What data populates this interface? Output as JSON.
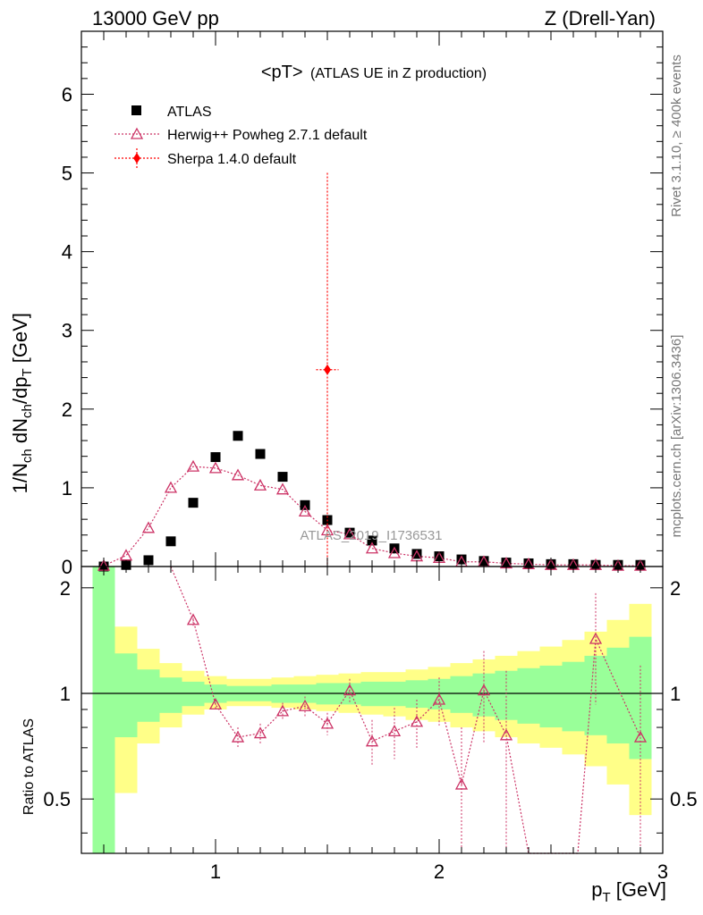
{
  "header": {
    "left": "13000 GeV pp",
    "right": "Z (Drell-Yan)"
  },
  "side_labels": {
    "rivet": "Rivet 3.1.10, ≥ 400k events",
    "mcplots": "mcplots.cern.ch [arXiv:1306.3436]"
  },
  "watermark": "ATLAS_2019_I1736531",
  "colors": {
    "atlas": "#000000",
    "herwig": "#cc3366",
    "sherpa": "#ff0000",
    "band_inner": "#99ff99",
    "band_outer": "#ffff88"
  },
  "chart_data": [
    {
      "type": "scatter",
      "panel": "main",
      "title": "<pT> (ATLAS UE in Z production)",
      "title_main": "<pT>",
      "title_sub": "(ATLAS UE in Z production)",
      "xlabel": "p_T [GeV]",
      "ylabel": "1/N_ch dN_ch/dp_T [GeV]",
      "xlim": [
        0.4,
        3.0
      ],
      "ylim": [
        0,
        6.8
      ],
      "y_ticks": [
        0,
        1,
        2,
        3,
        4,
        5,
        6
      ],
      "y_tick_labels": [
        "0",
        "1",
        "2",
        "3",
        "4",
        "5",
        "6"
      ],
      "legend_position": "top-left",
      "series": [
        {
          "name": "ATLAS",
          "marker": "square",
          "x": [
            0.5,
            0.6,
            0.7,
            0.8,
            0.9,
            1.0,
            1.1,
            1.2,
            1.3,
            1.4,
            1.5,
            1.6,
            1.7,
            1.8,
            1.9,
            2.0,
            2.1,
            2.2,
            2.3,
            2.4,
            2.5,
            2.6,
            2.7,
            2.8,
            2.9
          ],
          "y": [
            0.0,
            0.02,
            0.08,
            0.32,
            0.81,
            1.39,
            1.66,
            1.43,
            1.14,
            0.78,
            0.59,
            0.43,
            0.33,
            0.23,
            0.16,
            0.13,
            0.09,
            0.07,
            0.05,
            0.04,
            0.03,
            0.03,
            0.02,
            0.02,
            0.02
          ]
        },
        {
          "name": "Herwig++ Powheg 2.7.1 default",
          "marker": "open-triangle",
          "x": [
            0.5,
            0.6,
            0.7,
            0.8,
            0.9,
            1.0,
            1.1,
            1.2,
            1.3,
            1.4,
            1.5,
            1.6,
            1.7,
            1.8,
            1.9,
            2.0,
            2.1,
            2.2,
            2.3,
            2.4,
            2.5,
            2.6,
            2.7,
            2.8,
            2.9
          ],
          "y": [
            0.01,
            0.14,
            0.49,
            1.0,
            1.27,
            1.25,
            1.16,
            1.03,
            0.98,
            0.7,
            0.46,
            0.41,
            0.23,
            0.17,
            0.13,
            0.11,
            0.06,
            0.06,
            0.04,
            0.03,
            0.02,
            0.02,
            0.02,
            0.01,
            0.01
          ]
        },
        {
          "name": "Sherpa 1.4.0 default",
          "marker": "diamond",
          "x": [
            1.5
          ],
          "y": [
            2.5
          ],
          "xerr": [
            0.05
          ],
          "yerr": [
            2.5
          ]
        }
      ]
    },
    {
      "type": "line",
      "panel": "ratio",
      "xlabel": "p_T [GeV]",
      "ylabel": "Ratio to ATLAS",
      "xlim": [
        0.4,
        3.0
      ],
      "ylim": [
        0.35,
        2.3
      ],
      "x_ticks": [
        1,
        2,
        3
      ],
      "x_tick_labels": [
        "1",
        "2",
        "3"
      ],
      "y_ticks": [
        0.5,
        1,
        2
      ],
      "y_tick_labels": [
        "0.5",
        "1",
        "2"
      ],
      "reference_line": 1,
      "band_edges": [
        0.45,
        0.55,
        0.65,
        0.75,
        0.85,
        0.95,
        1.05,
        1.15,
        1.25,
        1.35,
        1.45,
        1.55,
        1.65,
        1.75,
        1.85,
        1.95,
        2.05,
        2.15,
        2.25,
        2.35,
        2.45,
        2.55,
        2.65,
        2.75,
        2.85,
        2.95
      ],
      "band_inner_low": [
        0.2,
        0.75,
        0.83,
        0.88,
        0.92,
        0.94,
        0.95,
        0.95,
        0.94,
        0.94,
        0.93,
        0.93,
        0.92,
        0.92,
        0.91,
        0.9,
        0.88,
        0.86,
        0.84,
        0.82,
        0.8,
        0.78,
        0.76,
        0.72,
        0.65
      ],
      "band_inner_high": [
        2.5,
        1.3,
        1.17,
        1.11,
        1.08,
        1.06,
        1.05,
        1.05,
        1.06,
        1.06,
        1.07,
        1.07,
        1.08,
        1.08,
        1.09,
        1.1,
        1.12,
        1.14,
        1.16,
        1.18,
        1.2,
        1.23,
        1.28,
        1.35,
        1.45
      ],
      "band_outer_low": [
        0.2,
        0.52,
        0.72,
        0.8,
        0.87,
        0.9,
        0.92,
        0.92,
        0.91,
        0.9,
        0.89,
        0.88,
        0.87,
        0.86,
        0.84,
        0.83,
        0.8,
        0.78,
        0.75,
        0.72,
        0.7,
        0.67,
        0.62,
        0.55,
        0.45
      ],
      "band_outer_high": [
        2.5,
        1.55,
        1.34,
        1.22,
        1.16,
        1.12,
        1.1,
        1.1,
        1.11,
        1.12,
        1.13,
        1.14,
        1.15,
        1.15,
        1.17,
        1.19,
        1.22,
        1.25,
        1.28,
        1.32,
        1.36,
        1.42,
        1.5,
        1.62,
        1.8
      ],
      "series": [
        {
          "name": "Herwig++ Powheg 2.7.1 default / ATLAS",
          "marker": "open-triangle",
          "x": [
            0.9,
            1.0,
            1.1,
            1.2,
            1.3,
            1.4,
            1.5,
            1.6,
            1.7,
            1.8,
            1.9,
            2.0,
            2.1,
            2.2,
            2.3,
            2.7,
            2.9
          ],
          "y": [
            1.62,
            0.93,
            0.75,
            0.77,
            0.89,
            0.92,
            0.82,
            1.02,
            0.73,
            0.78,
            0.83,
            0.96,
            0.55,
            1.02,
            0.76,
            1.43,
            0.75
          ],
          "yerr": [
            0.06,
            0.03,
            0.05,
            0.05,
            0.05,
            0.06,
            0.06,
            0.08,
            0.11,
            0.13,
            0.13,
            0.15,
            0.25,
            0.3,
            0.4,
            0.5,
            0.45
          ]
        }
      ]
    }
  ]
}
